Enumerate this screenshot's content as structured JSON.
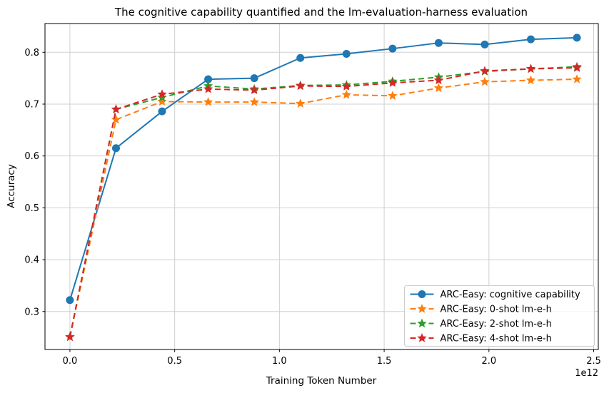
{
  "chart_data": {
    "type": "line",
    "title": "The cognitive capability quantified and the lm-evaluation-harness evaluation",
    "xlabel": "Training Token Number",
    "ylabel": "Accuracy",
    "x_offset_label": "1e12",
    "x_unit_multiplier": "1e12",
    "x": [
      0,
      0.22,
      0.44,
      0.66,
      0.88,
      1.1,
      1.32,
      1.54,
      1.76,
      1.98,
      2.2,
      2.42
    ],
    "series": [
      {
        "name": "ARC-Easy: cognitive capability",
        "color": "#1f77b4",
        "linestyle": "solid",
        "marker": "circle",
        "values": [
          0.322,
          0.615,
          0.686,
          0.748,
          0.75,
          0.789,
          0.797,
          0.807,
          0.818,
          0.815,
          0.825,
          0.828
        ]
      },
      {
        "name": "ARC-Easy: 0-shot lm-e-h",
        "color": "#ff7f0e",
        "linestyle": "dashed",
        "marker": "star",
        "values": [
          0.251,
          0.67,
          0.705,
          0.704,
          0.704,
          0.701,
          0.718,
          0.716,
          0.731,
          0.743,
          0.746,
          0.748
        ]
      },
      {
        "name": "ARC-Easy: 2-shot lm-e-h",
        "color": "#2ca02c",
        "linestyle": "dashed",
        "marker": "star",
        "values": [
          0.251,
          0.69,
          0.713,
          0.735,
          0.729,
          0.736,
          0.737,
          0.744,
          0.752,
          0.763,
          0.768,
          0.772
        ]
      },
      {
        "name": "ARC-Easy: 4-shot lm-e-h",
        "color": "#d62728",
        "linestyle": "dashed",
        "marker": "star",
        "values": [
          0.251,
          0.69,
          0.719,
          0.729,
          0.727,
          0.735,
          0.734,
          0.741,
          0.746,
          0.764,
          0.768,
          0.77
        ]
      }
    ],
    "xticks": {
      "values": [
        0.0,
        0.5,
        1.0,
        1.5,
        2.0,
        2.5
      ],
      "labels": [
        "0.0",
        "0.5",
        "1.0",
        "1.5",
        "2.0",
        "2.5"
      ]
    },
    "yticks": {
      "values": [
        0.3,
        0.4,
        0.5,
        0.6,
        0.7,
        0.8
      ],
      "labels": [
        "0.3",
        "0.4",
        "0.5",
        "0.6",
        "0.7",
        "0.8"
      ]
    },
    "xlim": [
      -0.119,
      2.522
    ],
    "ylim": [
      0.2268,
      0.8554
    ],
    "grid": true,
    "grid_color": "#d0d0d0",
    "spine_color": "#000000",
    "legend_position": "lower right",
    "legend_border_color": "#cccccc"
  }
}
